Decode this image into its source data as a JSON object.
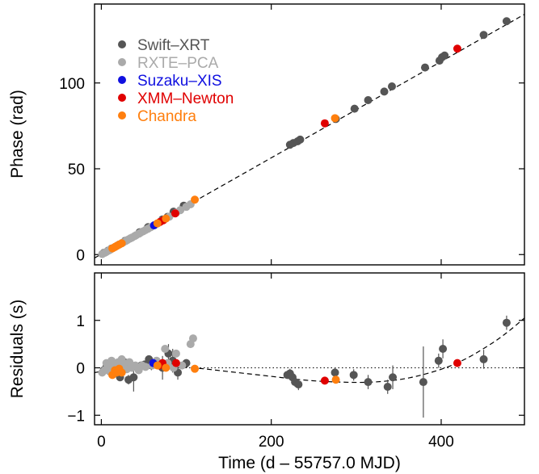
{
  "chart_data": [
    {
      "type": "scatter",
      "panel": "top",
      "ylabel": "Phase (rad)",
      "xlim": [
        -8,
        498
      ],
      "ylim": [
        -6,
        146
      ],
      "yticks": [
        0,
        50,
        100
      ],
      "xticks": [
        0,
        200,
        400
      ],
      "legend": {
        "placement": "top-left"
      },
      "series": [
        {
          "name": "Swift–XRT",
          "color": "#555555",
          "points": [
            [
              3,
              1.0
            ],
            [
              8,
              2.3
            ],
            [
              12,
              3.5
            ],
            [
              28,
              8.0
            ],
            [
              45,
              13.0
            ],
            [
              55,
              16.0
            ],
            [
              72,
              20.5
            ],
            [
              78,
              22.0
            ],
            [
              85,
              25.0
            ],
            [
              97,
              28.5
            ],
            [
              222,
              64.0
            ],
            [
              226,
              65.0
            ],
            [
              231,
              66.0
            ],
            [
              234,
              67.0
            ],
            [
              276,
              79.0
            ],
            [
              298,
              85.0
            ],
            [
              314,
              90.0
            ],
            [
              333,
              95.0
            ],
            [
              342,
              98.0
            ],
            [
              381,
              109.0
            ],
            [
              398,
              113.0
            ],
            [
              401,
              115.0
            ],
            [
              404,
              116.0
            ],
            [
              450,
              128.0
            ],
            [
              477,
              136.0
            ]
          ]
        },
        {
          "name": "RXTE–PCA",
          "color": "#aaaaaa",
          "points": [
            [
              1,
              0.3
            ],
            [
              4,
              1.0
            ],
            [
              6,
              1.6
            ],
            [
              9,
              2.4
            ],
            [
              11,
              3.0
            ],
            [
              14,
              3.9
            ],
            [
              16,
              4.4
            ],
            [
              19,
              5.3
            ],
            [
              21,
              5.9
            ],
            [
              24,
              6.6
            ],
            [
              26,
              7.2
            ],
            [
              29,
              8.0
            ],
            [
              31,
              8.6
            ],
            [
              34,
              9.4
            ],
            [
              36,
              9.9
            ],
            [
              39,
              10.7
            ],
            [
              41,
              11.3
            ],
            [
              44,
              12.1
            ],
            [
              46,
              12.7
            ],
            [
              49,
              13.5
            ],
            [
              52,
              14.3
            ],
            [
              55,
              15.1
            ],
            [
              58,
              15.9
            ],
            [
              63,
              17.3
            ],
            [
              66,
              18.1
            ],
            [
              70,
              19.3
            ],
            [
              74,
              20.4
            ],
            [
              80,
              22.1
            ],
            [
              88,
              24.4
            ],
            [
              93,
              25.9
            ],
            [
              100,
              27.8
            ],
            [
              105,
              29.3
            ]
          ]
        },
        {
          "name": "Suzaku–XIS",
          "color": "#1010e0",
          "points": [
            [
              62,
              17.0
            ]
          ]
        },
        {
          "name": "XMM–Newton",
          "color": "#e00000",
          "points": [
            [
              69,
              19.0
            ],
            [
              73,
              20.0
            ],
            [
              87,
              24.0
            ],
            [
              263,
              76.5
            ],
            [
              419,
              120.0
            ]
          ]
        },
        {
          "name": "Chandra",
          "color": "#ff7f0e",
          "points": [
            [
              13,
              3.6
            ],
            [
              16,
              4.4
            ],
            [
              18,
              5.0
            ],
            [
              21,
              5.8
            ],
            [
              24,
              6.6
            ],
            [
              66,
              18.2
            ],
            [
              76,
              21.0
            ],
            [
              110,
              32.0
            ],
            [
              275,
              79.5
            ]
          ]
        }
      ],
      "model_line": {
        "style": "dashed",
        "points": [
          [
            -8,
            -2.0
          ],
          [
            498,
            140.0
          ]
        ]
      }
    },
    {
      "type": "scatter",
      "panel": "bottom",
      "xlabel": "Time (d – 55757.0 MJD)",
      "ylabel": "Residuals (s)",
      "xlim": [
        -8,
        498
      ],
      "ylim": [
        -1.2,
        2.0
      ],
      "yticks": [
        -1,
        0,
        1
      ],
      "xticks": [
        0,
        200,
        400
      ],
      "zero_line": {
        "style": "dotted",
        "y": 0
      },
      "series": [
        {
          "name": "Swift–XRT",
          "color": "#555555",
          "points": [
            [
              3,
              -0.05,
              0.05
            ],
            [
              6,
              0.02,
              0.06
            ],
            [
              9,
              0.05,
              0.05
            ],
            [
              12,
              -0.03,
              0.05
            ],
            [
              15,
              0.0,
              0.05
            ],
            [
              22,
              -0.2,
              0.08
            ],
            [
              27,
              0.12,
              0.06
            ],
            [
              32,
              -0.25,
              0.1
            ],
            [
              38,
              -0.2,
              0.3
            ],
            [
              47,
              0.05,
              0.08
            ],
            [
              51,
              0.07,
              0.06
            ],
            [
              56,
              0.18,
              0.06
            ],
            [
              59,
              0.05,
              0.1
            ],
            [
              72,
              0.0,
              0.25
            ],
            [
              79,
              0.3,
              0.2
            ],
            [
              84,
              0.15,
              0.25
            ],
            [
              90,
              -0.1,
              0.15
            ],
            [
              100,
              0.1,
              0.08
            ],
            [
              219,
              -0.15,
              0.08
            ],
            [
              222,
              -0.12,
              0.1
            ],
            [
              225,
              -0.2,
              0.08
            ],
            [
              228,
              -0.3,
              0.1
            ],
            [
              232,
              -0.35,
              0.12
            ],
            [
              275,
              -0.1,
              0.1
            ],
            [
              297,
              -0.15,
              0.12
            ],
            [
              314,
              -0.3,
              0.15
            ],
            [
              337,
              -0.4,
              0.15
            ],
            [
              343,
              -0.2,
              0.25
            ],
            [
              379,
              -0.3,
              0.75
            ],
            [
              397,
              0.15,
              0.15
            ],
            [
              402,
              0.4,
              0.2
            ],
            [
              450,
              0.18,
              0.2
            ],
            [
              477,
              0.95,
              0.15
            ]
          ]
        },
        {
          "name": "RXTE–PCA",
          "color": "#aaaaaa",
          "points": [
            [
              1,
              -0.1
            ],
            [
              4,
              -0.05
            ],
            [
              6,
              0.1
            ],
            [
              8,
              0.05
            ],
            [
              10,
              -0.08
            ],
            [
              12,
              0.15
            ],
            [
              14,
              0.0
            ],
            [
              16,
              -0.05
            ],
            [
              18,
              0.1
            ],
            [
              20,
              0.12
            ],
            [
              22,
              0.05
            ],
            [
              24,
              0.18
            ],
            [
              26,
              0.1
            ],
            [
              28,
              0.05
            ],
            [
              30,
              -0.03
            ],
            [
              33,
              0.12
            ],
            [
              36,
              0.0
            ],
            [
              40,
              0.05
            ],
            [
              44,
              -0.05
            ],
            [
              48,
              0.05
            ],
            [
              52,
              0.02
            ],
            [
              60,
              0.05
            ],
            [
              65,
              0.15
            ],
            [
              75,
              0.4
            ],
            [
              78,
              0.1
            ],
            [
              85,
              0.0
            ],
            [
              88,
              0.3
            ],
            [
              95,
              0.05
            ],
            [
              105,
              0.5
            ],
            [
              108,
              0.62
            ]
          ]
        },
        {
          "name": "Suzaku–XIS",
          "color": "#1010e0",
          "points": [
            [
              61,
              0.1
            ]
          ]
        },
        {
          "name": "XMM–Newton",
          "color": "#e00000",
          "points": [
            [
              68,
              0.05
            ],
            [
              72,
              0.1
            ],
            [
              88,
              0.1
            ],
            [
              263,
              -0.27
            ],
            [
              419,
              0.1
            ]
          ]
        },
        {
          "name": "Chandra",
          "color": "#ff7f0e",
          "points": [
            [
              13,
              -0.15
            ],
            [
              16,
              -0.05
            ],
            [
              18,
              -0.1
            ],
            [
              21,
              -0.02
            ],
            [
              24,
              -0.1
            ],
            [
              66,
              0.05
            ],
            [
              76,
              0.0
            ],
            [
              110,
              -0.02
            ],
            [
              276,
              -0.25
            ]
          ]
        }
      ],
      "model_curve": {
        "style": "dashed",
        "points": [
          [
            -8,
            -0.1
          ],
          [
            20,
            -0.02
          ],
          [
            50,
            0.05
          ],
          [
            80,
            0.05
          ],
          [
            120,
            -0.02
          ],
          [
            160,
            -0.1
          ],
          [
            200,
            -0.18
          ],
          [
            240,
            -0.26
          ],
          [
            280,
            -0.3
          ],
          [
            320,
            -0.3
          ],
          [
            360,
            -0.22
          ],
          [
            400,
            -0.03
          ],
          [
            430,
            0.2
          ],
          [
            460,
            0.52
          ],
          [
            480,
            0.78
          ],
          [
            498,
            1.05
          ]
        ]
      }
    }
  ]
}
